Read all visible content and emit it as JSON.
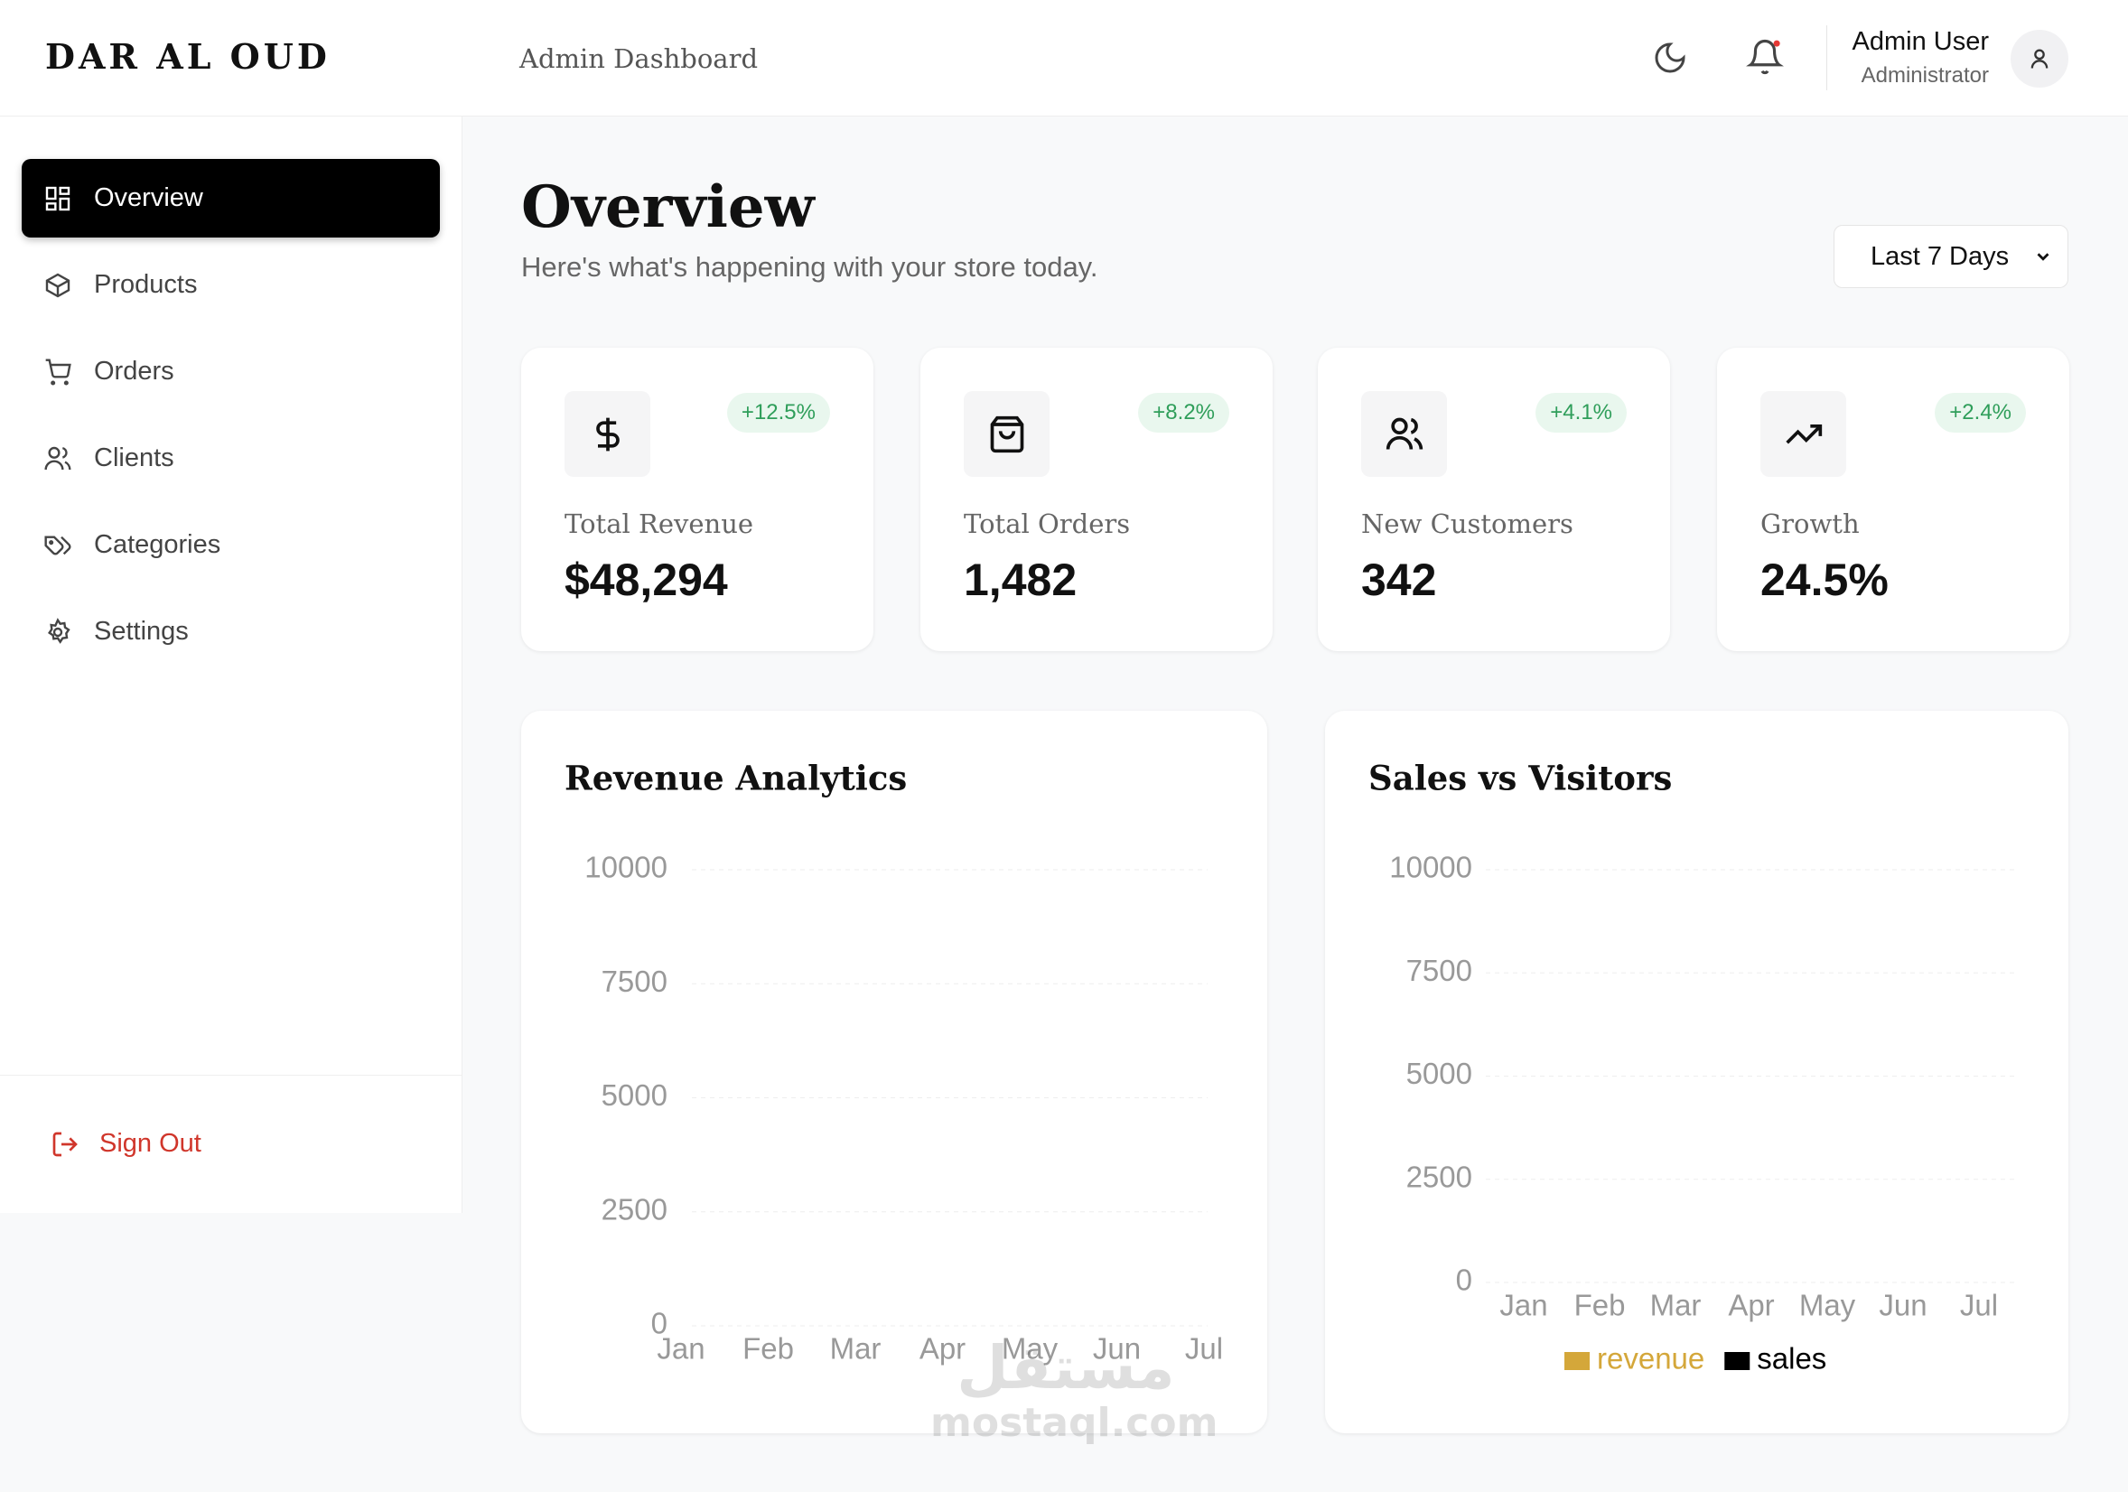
{
  "sidebar": {
    "brand": "DAR AL OUD",
    "nav": [
      "Overview",
      "Products",
      "Orders",
      "Clients",
      "Categories",
      "Settings"
    ],
    "sign_out": "Sign Out"
  },
  "header": {
    "title": "Admin Dashboard",
    "user_name": "Admin User",
    "user_role": "Administrator"
  },
  "page": {
    "title": "Overview",
    "subtitle": "Here's what's happening with your store today.",
    "range_select": "Last 7 Days"
  },
  "stats": [
    {
      "label": "Total Revenue",
      "value": "$48,294",
      "change": "+12.5%"
    },
    {
      "label": "Total Orders",
      "value": "1,482",
      "change": "+8.2%"
    },
    {
      "label": "New Customers",
      "value": "342",
      "change": "+4.1%"
    },
    {
      "label": "Growth",
      "value": "24.5%",
      "change": "+2.4%"
    }
  ],
  "chart_data": [
    {
      "type": "line",
      "title": "Revenue Analytics",
      "categories": [
        "Jan",
        "Feb",
        "Mar",
        "Apr",
        "May",
        "Jun",
        "Jul"
      ],
      "ylim": [
        0,
        10000
      ],
      "yticks": [
        0,
        2500,
        5000,
        7500,
        10000
      ],
      "grid": true
    },
    {
      "type": "bar",
      "title": "Sales vs Visitors",
      "categories": [
        "Jan",
        "Feb",
        "Mar",
        "Apr",
        "May",
        "Jun",
        "Jul"
      ],
      "ylim": [
        0,
        10000
      ],
      "yticks": [
        0,
        2500,
        5000,
        7500,
        10000
      ],
      "grid": true,
      "series": [
        {
          "name": "revenue",
          "color": "#d4a73a"
        },
        {
          "name": "sales",
          "color": "#000000"
        }
      ]
    }
  ],
  "watermark": [
    "مستقل",
    "mostaql.com"
  ]
}
